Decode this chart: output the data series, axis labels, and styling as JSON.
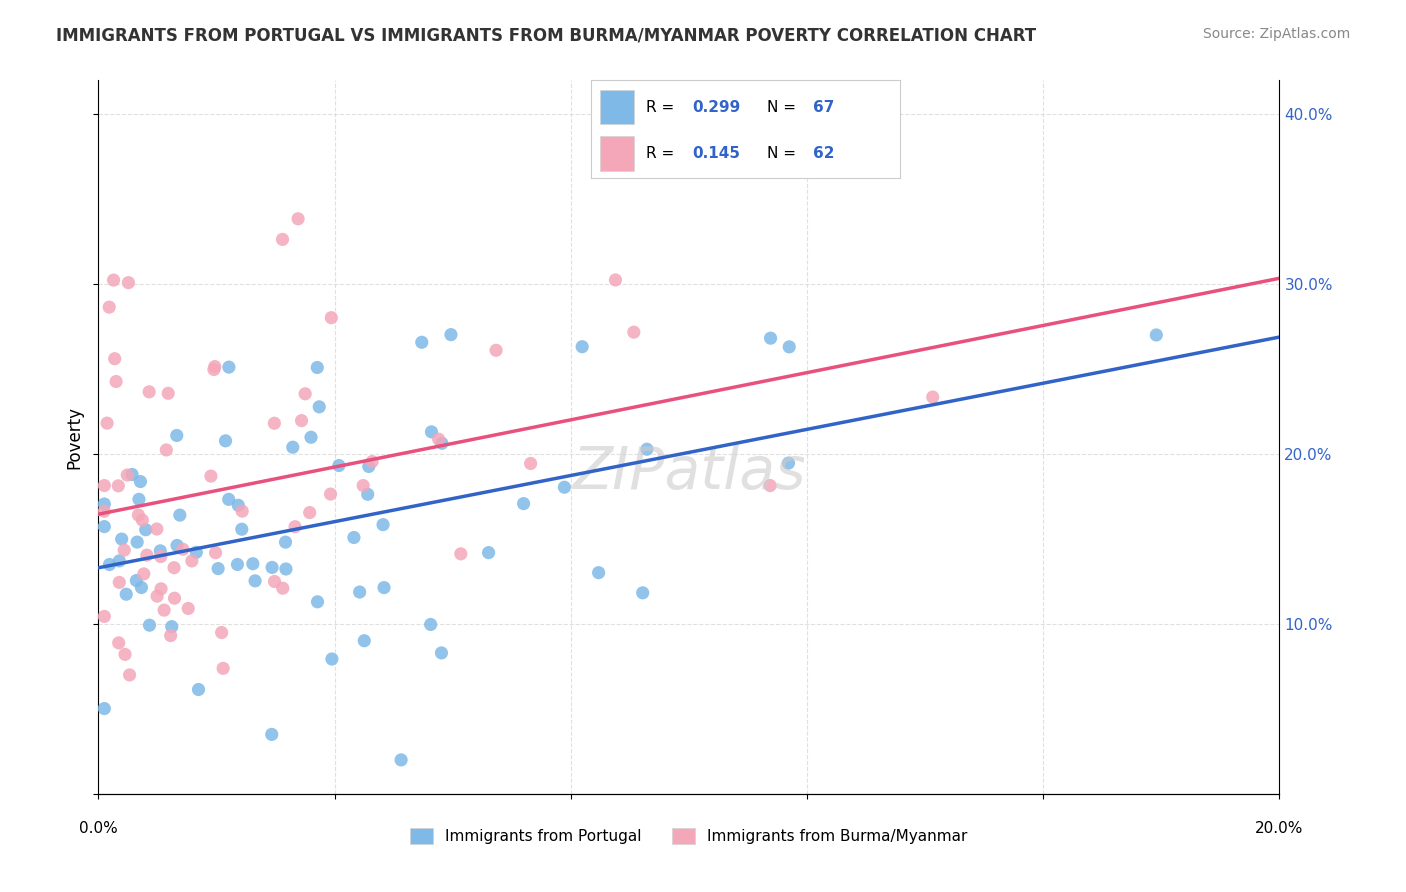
{
  "title": "IMMIGRANTS FROM PORTUGAL VS IMMIGRANTS FROM BURMA/MYANMAR POVERTY CORRELATION CHART",
  "source": "Source: ZipAtlas.com",
  "ylabel": "Poverty",
  "xlim": [
    0.0,
    0.2
  ],
  "ylim": [
    0.0,
    0.42
  ],
  "blue_color": "#7EB9E8",
  "pink_color": "#F4A7B9",
  "blue_line_color": "#3264C8",
  "pink_line_color": "#E8507D",
  "R_blue": 0.299,
  "N_blue": 67,
  "R_pink": 0.145,
  "N_pink": 62,
  "watermark": "ZIPatlas",
  "background_color": "#ffffff",
  "grid_color": "#dddddd"
}
